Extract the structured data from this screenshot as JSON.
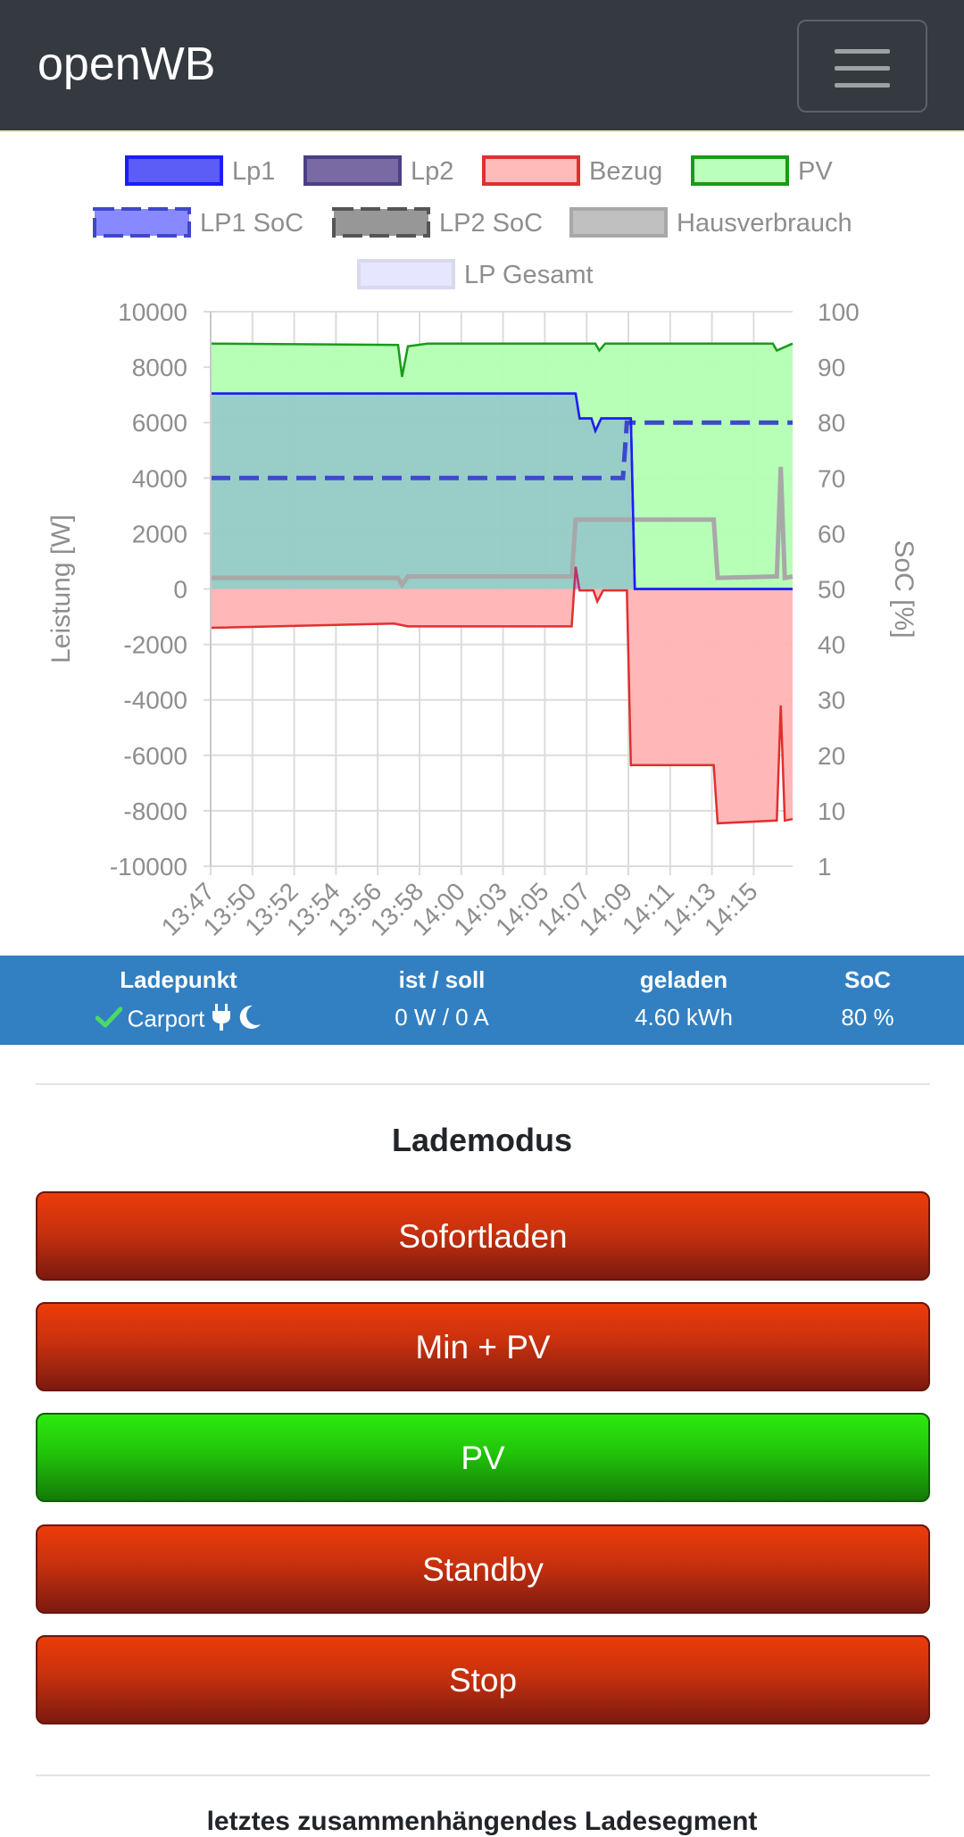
{
  "navbar": {
    "brand": "openWB",
    "menu_icon": "hamburger-menu-icon"
  },
  "chart_data": {
    "type": "area",
    "legend": [
      {
        "name": "Lp1",
        "color": "#1d1df5",
        "fill": "#4a4af5",
        "style": "solid"
      },
      {
        "name": "Lp2",
        "color": "#4c3f86",
        "fill": "#6b5a9a",
        "style": "solid"
      },
      {
        "name": "Bezug",
        "color": "#e03030",
        "fill": "#ffb3b3",
        "style": "solid"
      },
      {
        "name": "PV",
        "color": "#1a9a1a",
        "fill": "#b3ffb3",
        "style": "solid"
      },
      {
        "name": "LP1 SoC",
        "color": "#3f48cc",
        "fill": "#7b7bff",
        "style": "dashed"
      },
      {
        "name": "LP2 SoC",
        "color": "#555555",
        "fill": "#8c8c8c",
        "style": "dashed"
      },
      {
        "name": "Hausverbrauch",
        "color": "#a8a8a8",
        "fill": "#b9b9b9",
        "style": "solid"
      },
      {
        "name": "LP Gesamt",
        "color": "#d8d8ee",
        "fill": "#e6e6ff",
        "style": "solid"
      }
    ],
    "x_ticks": [
      "13:47",
      "13:50",
      "13:52",
      "13:54",
      "13:56",
      "13:58",
      "14:00",
      "14:03",
      "14:05",
      "14:07",
      "14:09",
      "14:11",
      "14:13",
      "14:15"
    ],
    "x_start_minute": 827,
    "x_end_minute": 856.5,
    "ylabel_left": "Leistung [W]",
    "ylabel_right": "SoC [%]",
    "ylim_left": [
      -10000,
      10000
    ],
    "y_ticks_left": [
      "10000",
      "8000",
      "6000",
      "4000",
      "2000",
      "0",
      "-2000",
      "-4000",
      "-6000",
      "-8000",
      "-10000"
    ],
    "y_ticks_right": [
      "100",
      "90",
      "80",
      "70",
      "60",
      "50",
      "40",
      "30",
      "20",
      "10",
      "1"
    ],
    "ylim_right": [
      0,
      100
    ],
    "grid": true,
    "series": [
      {
        "name": "PV",
        "points": [
          [
            827,
            8850
          ],
          [
            836.5,
            8800
          ],
          [
            836.7,
            7650
          ],
          [
            837,
            8750
          ],
          [
            838,
            8850
          ],
          [
            846.5,
            8850
          ],
          [
            846.7,
            8600
          ],
          [
            847,
            8850
          ],
          [
            855.5,
            8850
          ],
          [
            855.7,
            8600
          ],
          [
            856.5,
            8850
          ]
        ]
      },
      {
        "name": "Lp1",
        "points": [
          [
            827,
            7050
          ],
          [
            845.5,
            7050
          ],
          [
            845.7,
            6150
          ],
          [
            846.3,
            6150
          ],
          [
            846.5,
            5700
          ],
          [
            846.8,
            6150
          ],
          [
            848.3,
            6150
          ],
          [
            848.5,
            0
          ],
          [
            856.5,
            0
          ]
        ]
      },
      {
        "name": "Bezug",
        "points": [
          [
            827,
            -1400
          ],
          [
            836.3,
            -1250
          ],
          [
            837,
            -1350
          ],
          [
            845.3,
            -1350
          ],
          [
            845.5,
            800
          ],
          [
            845.7,
            -50
          ],
          [
            846.4,
            -50
          ],
          [
            846.6,
            -450
          ],
          [
            846.9,
            -50
          ],
          [
            848.1,
            -50
          ],
          [
            848.3,
            -6350
          ],
          [
            852.5,
            -6350
          ],
          [
            852.7,
            -8450
          ],
          [
            855.7,
            -8350
          ],
          [
            855.9,
            -4200
          ],
          [
            856.1,
            -8350
          ],
          [
            856.5,
            -8300
          ]
        ]
      },
      {
        "name": "Hausverbrauch",
        "points": [
          [
            827,
            400
          ],
          [
            836.5,
            400
          ],
          [
            836.7,
            150
          ],
          [
            837,
            450
          ],
          [
            845.3,
            450
          ],
          [
            845.5,
            2500
          ],
          [
            852.5,
            2500
          ],
          [
            852.7,
            400
          ],
          [
            855.7,
            450
          ],
          [
            855.9,
            4400
          ],
          [
            856.1,
            400
          ],
          [
            856.5,
            450
          ]
        ]
      },
      {
        "name": "LP1 SoC",
        "points": [
          [
            827,
            70
          ],
          [
            847.9,
            70
          ],
          [
            848.1,
            80
          ],
          [
            856.5,
            80
          ]
        ]
      }
    ]
  },
  "lp_table": {
    "headers": {
      "ladepunkt": "Ladepunkt",
      "ist_soll": "ist / soll",
      "geladen": "geladen",
      "soc": "SoC"
    },
    "row": {
      "name": "Carport",
      "ist_soll": "0 W / 0 A",
      "geladen": "4.60 kWh",
      "soc": "80 %"
    },
    "colors": {
      "background": "#3280c2",
      "check": "#4cd964"
    }
  },
  "lademodus": {
    "title": "Lademodus",
    "buttons": [
      {
        "label": "Sofortladen",
        "state": "inactive"
      },
      {
        "label": "Min + PV",
        "state": "inactive"
      },
      {
        "label": "PV",
        "state": "active"
      },
      {
        "label": "Standby",
        "state": "inactive"
      },
      {
        "label": "Stop",
        "state": "inactive"
      }
    ],
    "colors": {
      "active": "#21c40a",
      "inactive": "#c7310e"
    }
  },
  "next_section": {
    "title": "letztes zusammenhängendes Ladesegment"
  }
}
